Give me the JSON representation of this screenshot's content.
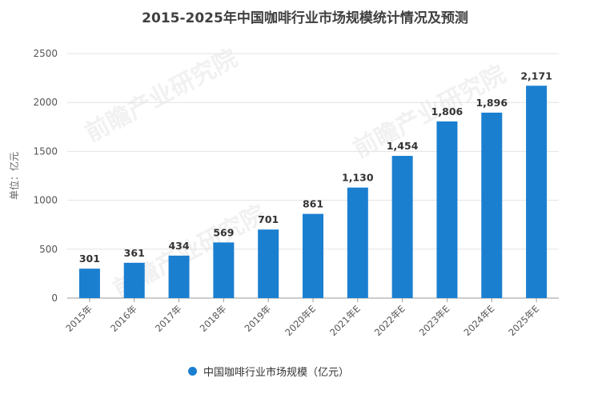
{
  "title": "2015-2025年中国咖啡行业市场规模统计情况及预测",
  "colors": {
    "bar": "#1b7fd0",
    "grid": "#e3e3e3",
    "axis": "#555555"
  },
  "watermark": {
    "text": "前瞻产业研究院"
  },
  "chart_data": {
    "type": "bar",
    "categories": [
      "2015年",
      "2016年",
      "2017年",
      "2018年",
      "2019年",
      "2020年E",
      "2021年E",
      "2022年E",
      "2023年E",
      "2024年E",
      "2025年E"
    ],
    "values": [
      301,
      361,
      434,
      569,
      701,
      861,
      1130,
      1454,
      1806,
      1896,
      2171
    ],
    "value_labels": [
      "301",
      "361",
      "434",
      "569",
      "701",
      "861",
      "1,130",
      "1,454",
      "1,806",
      "1,896",
      "2,171"
    ],
    "ylabel": "单位：亿元",
    "ylim": [
      0,
      2500
    ],
    "yticks": [
      0,
      500,
      1000,
      1500,
      2000,
      2500
    ],
    "grid": true,
    "legend_position": "bottom",
    "series": [
      {
        "name": "中国咖啡行业市场规模（亿元）"
      }
    ]
  }
}
